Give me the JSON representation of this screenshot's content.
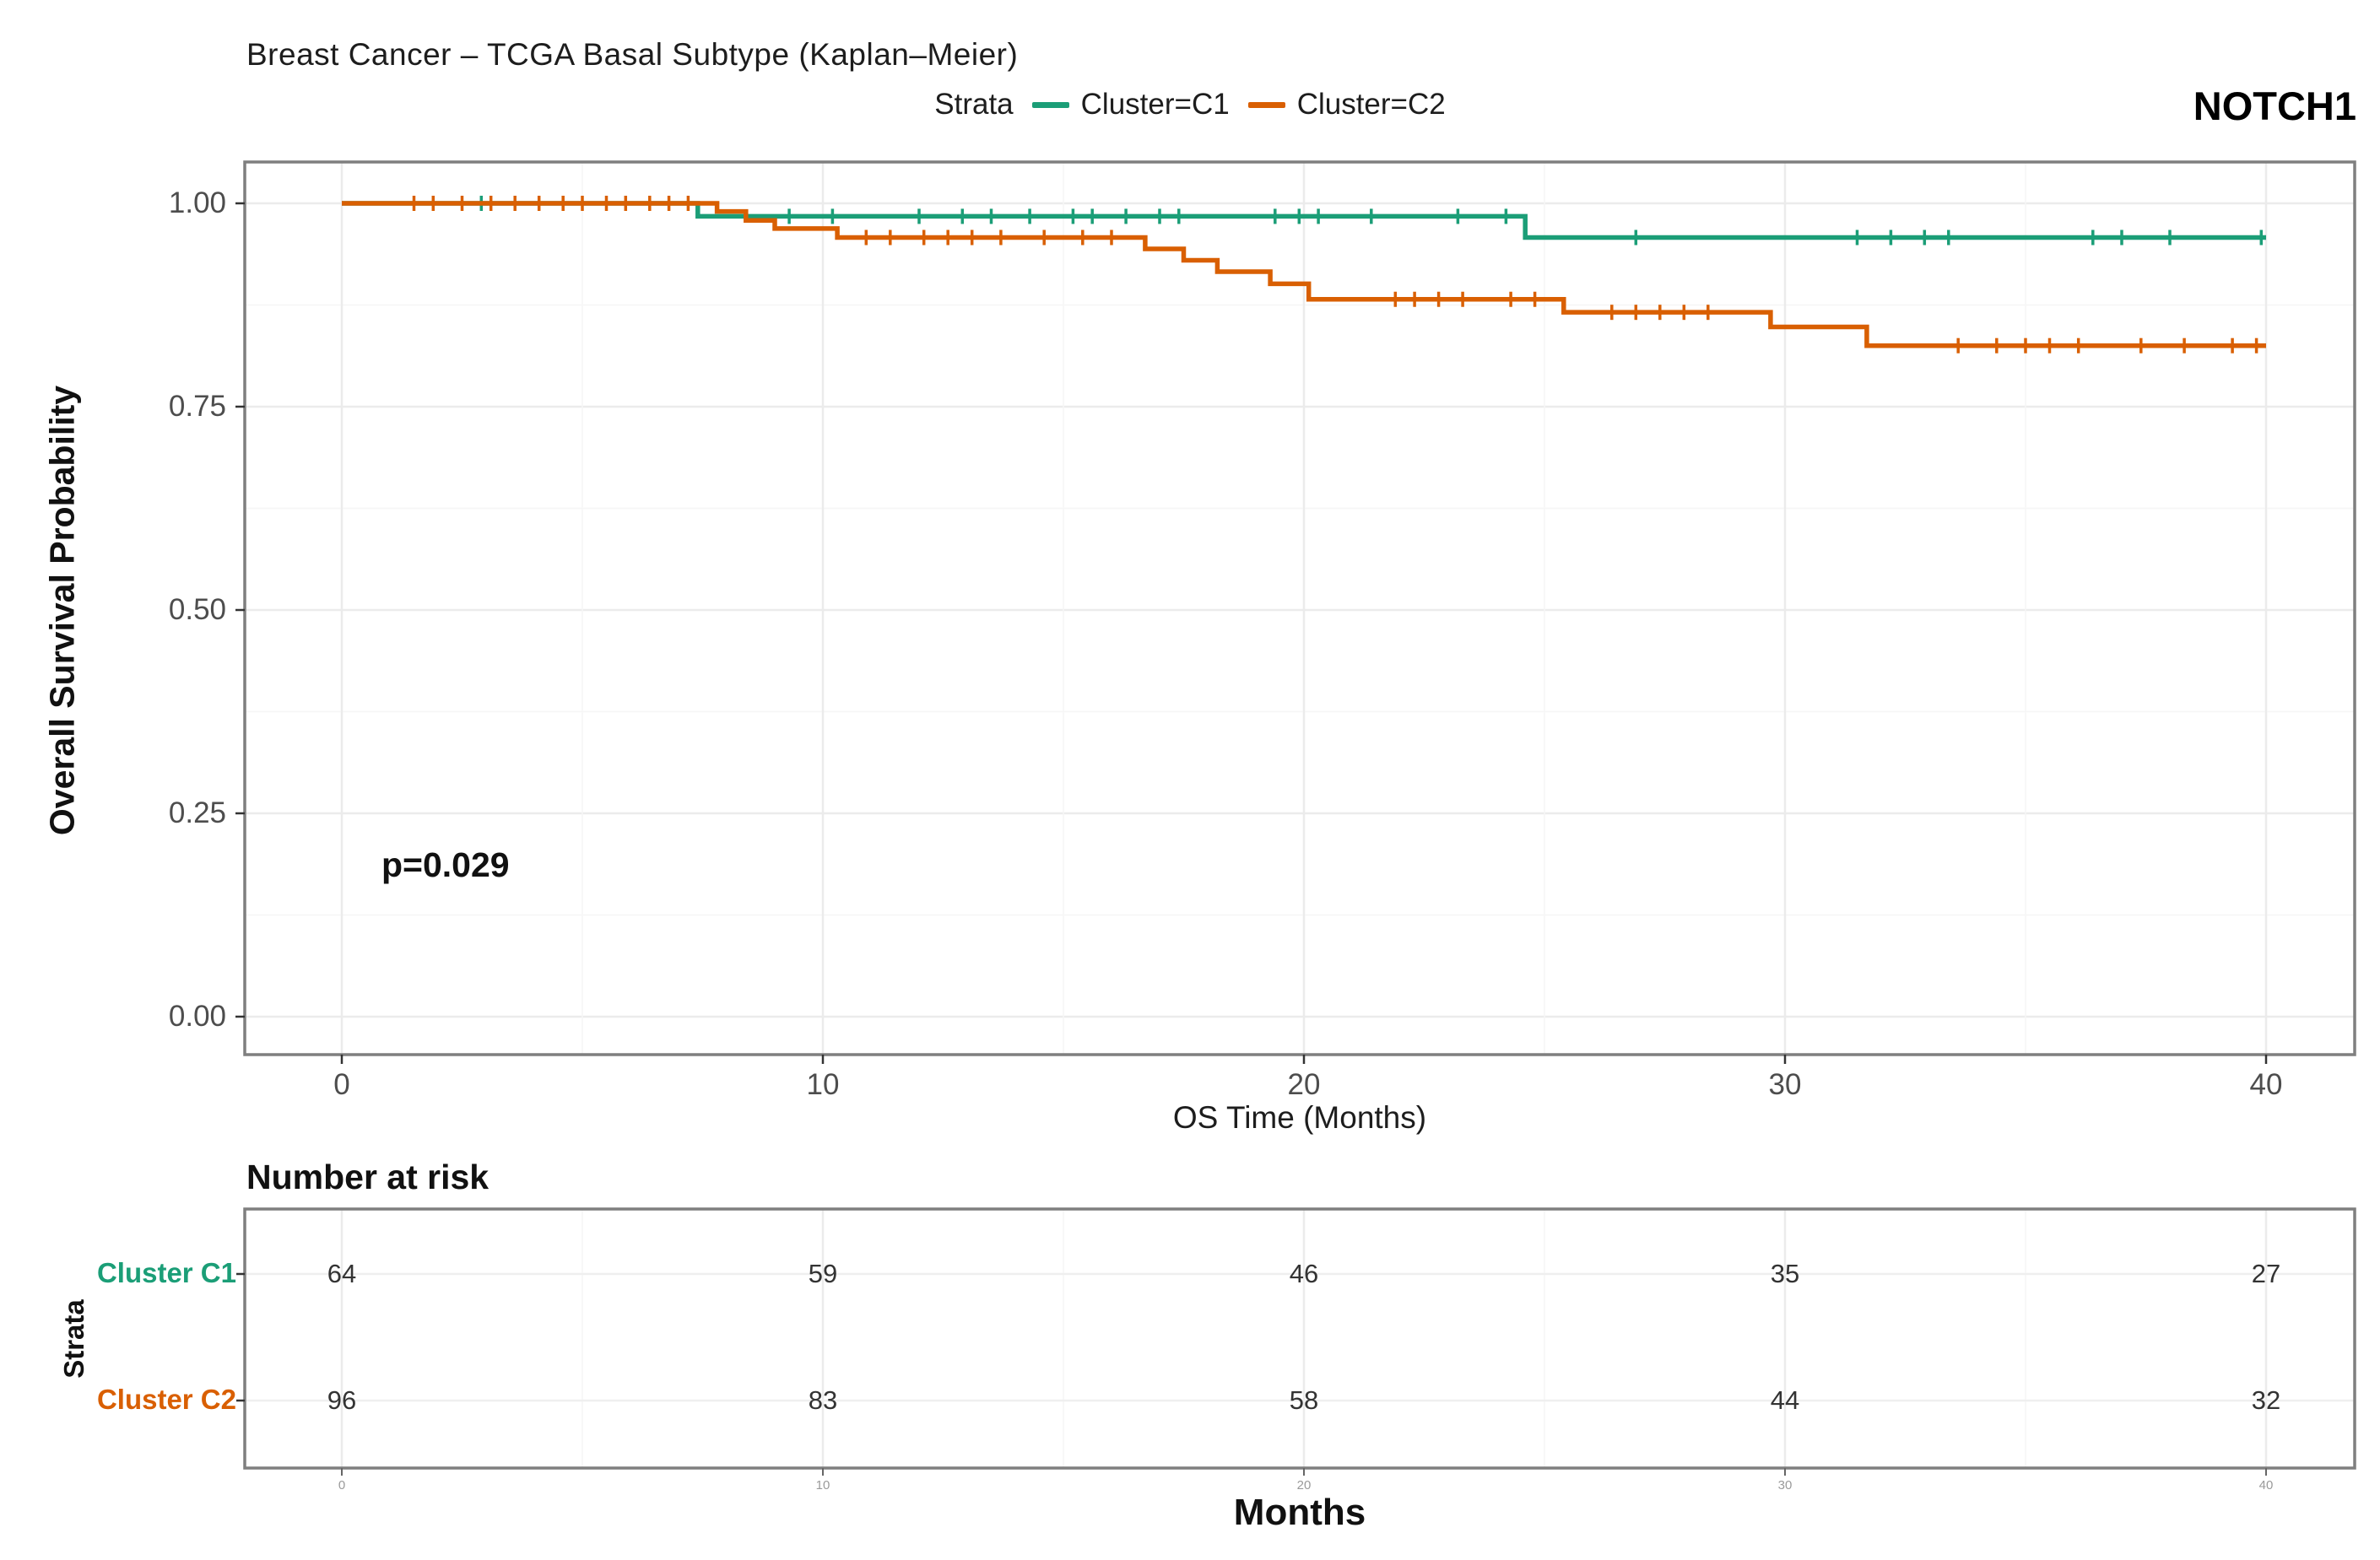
{
  "title": "Breast Cancer – TCGA Basal Subtype (Kaplan–Meier)",
  "gene_label": "NOTCH1",
  "p_value": "p=0.029",
  "legend": {
    "label": "Strata",
    "items": [
      {
        "name": "Cluster=C1",
        "color": "#1B9E77"
      },
      {
        "name": "Cluster=C2",
        "color": "#D95F02"
      }
    ]
  },
  "axes": {
    "y_label": "Overall Survival Probability",
    "x_label": "OS Time (Months)",
    "y_ticks": [
      "1.00",
      "0.75",
      "0.50",
      "0.25",
      "0.00"
    ],
    "x_ticks": [
      "0",
      "10",
      "20",
      "30",
      "40"
    ]
  },
  "risk_table": {
    "heading": "Number at risk",
    "side_label": "Strata",
    "x_label": "Months",
    "x_ticks": [
      "0",
      "10",
      "20",
      "30",
      "40"
    ],
    "rows": [
      {
        "label": "Cluster C1",
        "color": "#1B9E77",
        "counts": [
          64,
          59,
          46,
          35,
          27
        ]
      },
      {
        "label": "Cluster C2",
        "color": "#D95F02",
        "counts": [
          96,
          83,
          58,
          44,
          32
        ]
      }
    ]
  },
  "chart_data": {
    "type": "line",
    "subtype": "kaplan-meier-step",
    "title": "Breast Cancer – TCGA Basal Subtype (Kaplan–Meier)",
    "xlabel": "OS Time (Months)",
    "ylabel": "Overall Survival Probability",
    "xlim": [
      0,
      40
    ],
    "ylim": [
      0,
      1
    ],
    "x_major_ticks": [
      0,
      10,
      20,
      30,
      40
    ],
    "y_major_ticks": [
      0,
      0.25,
      0.5,
      0.75,
      1.0
    ],
    "grid": true,
    "legend_position": "top",
    "annotations": [
      {
        "text": "p=0.029",
        "x": 2.5,
        "y": 0.21
      }
    ],
    "series": [
      {
        "name": "Cluster=C1",
        "color": "#1B9E77",
        "n_at_risk": [
          64,
          59,
          46,
          35,
          27
        ],
        "steps": [
          [
            0,
            1.0
          ],
          [
            7.4,
            0.984
          ],
          [
            24.6,
            0.958
          ],
          [
            40,
            0.958
          ]
        ],
        "censors": [
          [
            2.9,
            1.0
          ],
          [
            9.3,
            0.984
          ],
          [
            10.2,
            0.984
          ],
          [
            12.0,
            0.984
          ],
          [
            12.9,
            0.984
          ],
          [
            13.5,
            0.984
          ],
          [
            14.3,
            0.984
          ],
          [
            15.2,
            0.984
          ],
          [
            15.6,
            0.984
          ],
          [
            16.3,
            0.984
          ],
          [
            17.0,
            0.984
          ],
          [
            17.4,
            0.984
          ],
          [
            19.4,
            0.984
          ],
          [
            19.9,
            0.984
          ],
          [
            20.3,
            0.984
          ],
          [
            21.4,
            0.984
          ],
          [
            23.2,
            0.984
          ],
          [
            24.2,
            0.984
          ],
          [
            26.9,
            0.958
          ],
          [
            31.5,
            0.958
          ],
          [
            32.2,
            0.958
          ],
          [
            32.9,
            0.958
          ],
          [
            33.4,
            0.958
          ],
          [
            36.4,
            0.958
          ],
          [
            37.0,
            0.958
          ],
          [
            38.0,
            0.958
          ],
          [
            39.9,
            0.958
          ]
        ]
      },
      {
        "name": "Cluster=C2",
        "color": "#D95F02",
        "n_at_risk": [
          96,
          83,
          58,
          44,
          32
        ],
        "steps": [
          [
            0,
            1.0
          ],
          [
            7.8,
            0.99
          ],
          [
            8.4,
            0.979
          ],
          [
            9.0,
            0.969
          ],
          [
            10.3,
            0.958
          ],
          [
            16.7,
            0.944
          ],
          [
            17.5,
            0.93
          ],
          [
            18.2,
            0.916
          ],
          [
            19.3,
            0.901
          ],
          [
            20.1,
            0.882
          ],
          [
            25.4,
            0.866
          ],
          [
            29.7,
            0.848
          ],
          [
            31.7,
            0.825
          ],
          [
            40,
            0.825
          ]
        ],
        "censors": [
          [
            1.5,
            1.0
          ],
          [
            1.9,
            1.0
          ],
          [
            2.5,
            1.0
          ],
          [
            3.1,
            1.0
          ],
          [
            3.6,
            1.0
          ],
          [
            4.1,
            1.0
          ],
          [
            4.6,
            1.0
          ],
          [
            5.0,
            1.0
          ],
          [
            5.5,
            1.0
          ],
          [
            5.9,
            1.0
          ],
          [
            6.4,
            1.0
          ],
          [
            6.8,
            1.0
          ],
          [
            7.2,
            1.0
          ],
          [
            10.9,
            0.958
          ],
          [
            11.4,
            0.958
          ],
          [
            12.1,
            0.958
          ],
          [
            12.6,
            0.958
          ],
          [
            13.1,
            0.958
          ],
          [
            13.7,
            0.958
          ],
          [
            14.6,
            0.958
          ],
          [
            15.4,
            0.958
          ],
          [
            16.0,
            0.958
          ],
          [
            21.9,
            0.882
          ],
          [
            22.3,
            0.882
          ],
          [
            22.8,
            0.882
          ],
          [
            23.3,
            0.882
          ],
          [
            24.3,
            0.882
          ],
          [
            24.8,
            0.882
          ],
          [
            26.4,
            0.866
          ],
          [
            26.9,
            0.866
          ],
          [
            27.4,
            0.866
          ],
          [
            27.9,
            0.866
          ],
          [
            28.4,
            0.866
          ],
          [
            33.6,
            0.825
          ],
          [
            34.4,
            0.825
          ],
          [
            35.0,
            0.825
          ],
          [
            35.5,
            0.825
          ],
          [
            36.1,
            0.825
          ],
          [
            37.4,
            0.825
          ],
          [
            38.3,
            0.825
          ],
          [
            39.3,
            0.825
          ],
          [
            39.8,
            0.825
          ]
        ]
      }
    ]
  }
}
